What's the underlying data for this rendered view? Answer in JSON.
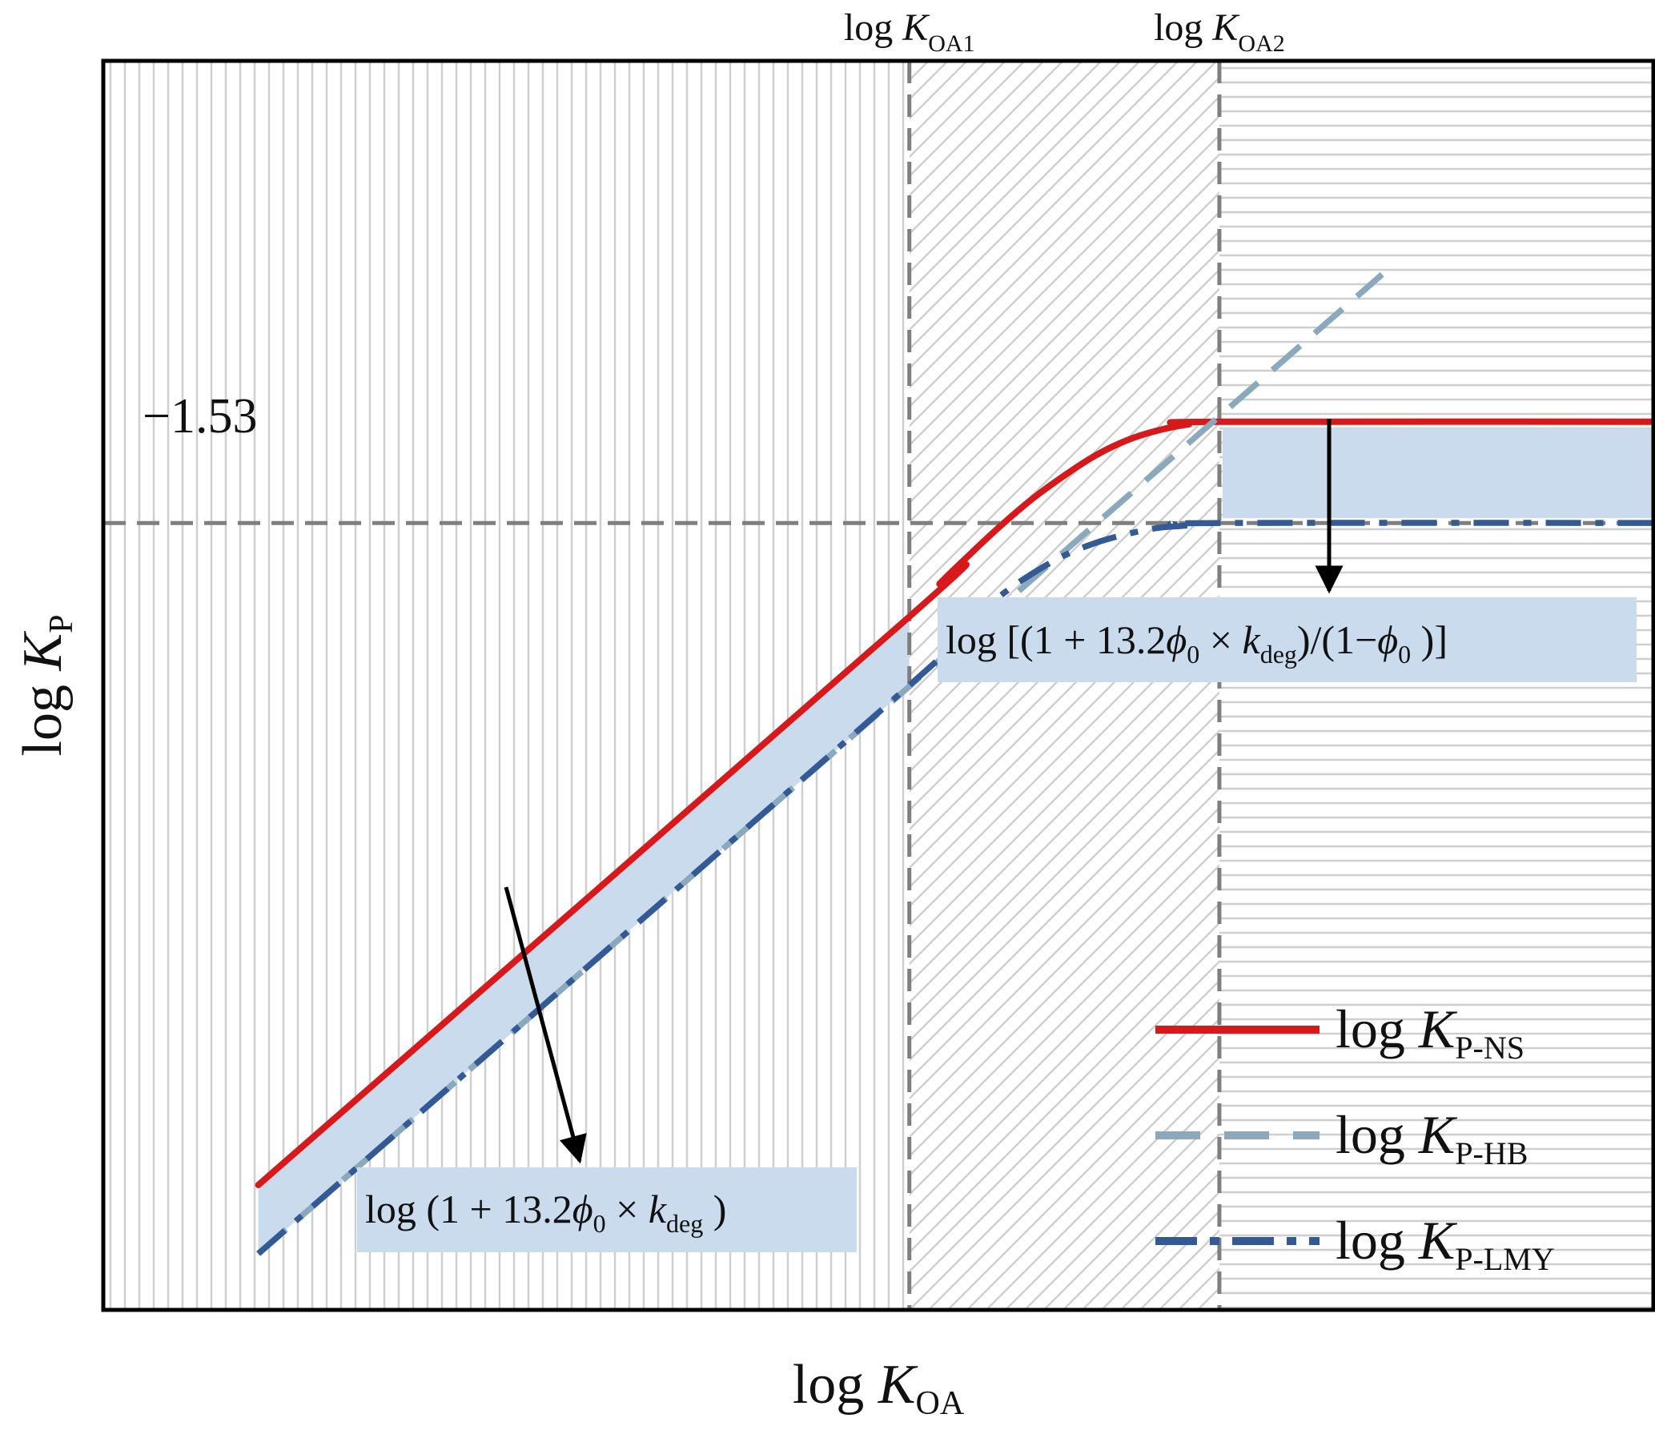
{
  "chart_data": {
    "type": "line",
    "title": "",
    "xlabel": {
      "main": "log ",
      "var": "K",
      "sub": "OA"
    },
    "ylabel": {
      "main": "log ",
      "var": "K",
      "sub": "P"
    },
    "xlim": [
      0,
      10
    ],
    "ylim": [
      0,
      10
    ],
    "grid": false,
    "legend_position": "bottom-right",
    "reference_lines": [
      {
        "orientation": "horizontal",
        "value": 6.3,
        "label": "−1.53"
      },
      {
        "orientation": "vertical",
        "value": 5.2,
        "label": {
          "main": "log ",
          "var": "K",
          "sub": "OA1"
        }
      },
      {
        "orientation": "vertical",
        "value": 7.2,
        "label": {
          "main": "log ",
          "var": "K",
          "sub": "OA2"
        }
      }
    ],
    "regions": [
      {
        "from": 0,
        "to": 5.2,
        "pattern": "vertical-lines"
      },
      {
        "from": 5.2,
        "to": 7.2,
        "pattern": "diagonal-hatch"
      },
      {
        "from": 7.2,
        "to": 10,
        "pattern": "horizontal-lines"
      }
    ],
    "series": [
      {
        "name": {
          "main": "log ",
          "var": "K",
          "sub": "P-NS"
        },
        "style": "solid",
        "color": "#d7191c",
        "x": [
          1.0,
          5.2,
          5.4,
          5.6,
          5.8,
          6.0,
          6.2,
          6.4,
          6.6,
          6.8,
          7.0,
          7.2,
          10.7
        ],
        "y": [
          1.0,
          5.55,
          5.82,
          6.06,
          6.29,
          6.5,
          6.68,
          6.84,
          6.96,
          7.04,
          7.09,
          7.11,
          7.11
        ]
      },
      {
        "name": {
          "main": "log ",
          "var": "K",
          "sub": "P-HB"
        },
        "style": "dashed",
        "color": "#8aa9bc",
        "x": [
          1.0,
          8.25
        ],
        "y": [
          0.45,
          8.29
        ]
      },
      {
        "name": {
          "main": "log ",
          "var": "K",
          "sub": "P-LMY"
        },
        "style": "dashdot",
        "color": "#335a94",
        "x": [
          1.0,
          5.2,
          5.4,
          5.6,
          5.8,
          6.0,
          6.2,
          6.4,
          6.6,
          6.8,
          7.0,
          7.2,
          10.7
        ],
        "y": [
          0.45,
          5.0,
          5.28,
          5.52,
          5.73,
          5.9,
          6.04,
          6.14,
          6.21,
          6.26,
          6.28,
          6.3,
          6.3
        ]
      }
    ],
    "annotations": [
      {
        "parts": [
          {
            "t": "log (1 + 13.2"
          },
          {
            "t": "ϕ",
            "i": true
          },
          {
            "t": "0",
            "sub": true
          },
          {
            "t": " × "
          },
          {
            "t": "k",
            "i": true
          },
          {
            "t": "deg",
            "sub": true
          },
          {
            "t": " )"
          }
        ]
      },
      {
        "parts": [
          {
            "t": "log [(1 + 13.2"
          },
          {
            "t": "ϕ",
            "i": true
          },
          {
            "t": "0",
            "sub": true
          },
          {
            "t": " × "
          },
          {
            "t": "k",
            "i": true
          },
          {
            "t": "deg",
            "sub": true
          },
          {
            "t": ")/(1−"
          },
          {
            "t": "ϕ",
            "i": true
          },
          {
            "t": "0",
            "sub": true
          },
          {
            "t": " )]"
          }
        ]
      }
    ],
    "colors": {
      "band": "#c9dbed",
      "reference": "#7f7f7f",
      "pattern": "#cfcfcf",
      "frame": "#000000",
      "arrow": "#000000"
    }
  }
}
